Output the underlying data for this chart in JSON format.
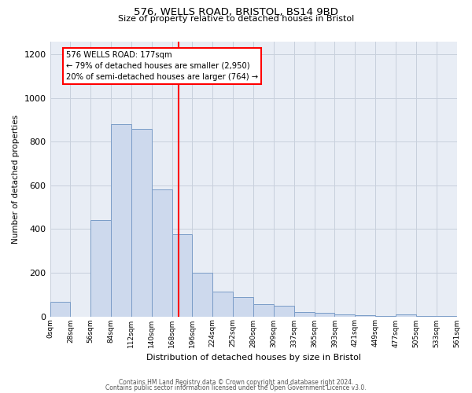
{
  "title": "576, WELLS ROAD, BRISTOL, BS14 9BD",
  "subtitle": "Size of property relative to detached houses in Bristol",
  "xlabel": "Distribution of detached houses by size in Bristol",
  "ylabel": "Number of detached properties",
  "bar_color": "#cdd9ed",
  "bar_edge_color": "#7a9cc7",
  "bin_labels": [
    "0sqm",
    "28sqm",
    "56sqm",
    "84sqm",
    "112sqm",
    "140sqm",
    "168sqm",
    "196sqm",
    "224sqm",
    "252sqm",
    "280sqm",
    "309sqm",
    "337sqm",
    "365sqm",
    "393sqm",
    "421sqm",
    "449sqm",
    "477sqm",
    "505sqm",
    "533sqm",
    "561sqm"
  ],
  "bar_heights": [
    65,
    0,
    440,
    880,
    860,
    580,
    375,
    200,
    115,
    90,
    55,
    47,
    20,
    15,
    10,
    5,
    3,
    8,
    3,
    3,
    8
  ],
  "ylim": [
    0,
    1260
  ],
  "yticks": [
    0,
    200,
    400,
    600,
    800,
    1000,
    1200
  ],
  "grid_color": "#c8d0dc",
  "bg_color": "#e8edf5",
  "footer_line1": "Contains HM Land Registry data © Crown copyright and database right 2024.",
  "footer_line2": "Contains public sector information licensed under the Open Government Licence v3.0.",
  "bin_width": 28,
  "property_size": 177,
  "annot_line1": "576 WELLS ROAD: 177sqm",
  "annot_line2": "← 79% of detached houses are smaller (2,950)",
  "annot_line3": "20% of semi-detached houses are larger (764) →"
}
